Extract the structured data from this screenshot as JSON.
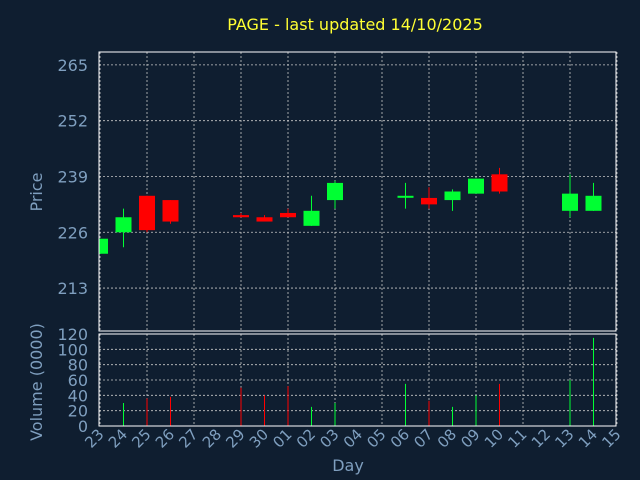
{
  "chart_data": {
    "type": "candlestick",
    "title": "PAGE - last updated 14/10/2025",
    "xlabel": "Day",
    "colors": {
      "background": "#0f1e30",
      "up": "#00ff33",
      "down": "#ff0000",
      "title": "#ffff33",
      "axis_text": "#7f9fbf",
      "grid": "#c8c8c8"
    },
    "price_panel": {
      "ylabel": "Price",
      "ylim": [
        203,
        268
      ],
      "yticks": [
        213,
        226,
        239,
        252,
        265
      ],
      "grid": true
    },
    "volume_panel": {
      "ylabel": "Volume (0000)",
      "ylim": [
        0,
        120
      ],
      "yticks": [
        0,
        20,
        40,
        60,
        80,
        100,
        120
      ],
      "grid": true
    },
    "x_ticks": [
      "23",
      "24",
      "25",
      "26",
      "27",
      "28",
      "29",
      "30",
      "01",
      "02",
      "03",
      "04",
      "05",
      "06",
      "07",
      "08",
      "09",
      "10",
      "11",
      "12",
      "13",
      "14",
      "15"
    ],
    "candles": [
      {
        "day": "23",
        "open": 221.0,
        "high": 224.5,
        "low": 221.0,
        "close": 224.5,
        "volume": 0
      },
      {
        "day": "24",
        "open": 226.0,
        "high": 231.5,
        "low": 222.5,
        "close": 229.5,
        "volume": 30
      },
      {
        "day": "25",
        "open": 234.5,
        "high": 234.5,
        "low": 226.0,
        "close": 226.5,
        "volume": 36
      },
      {
        "day": "26",
        "open": 233.5,
        "high": 233.5,
        "low": 228.0,
        "close": 228.5,
        "volume": 38
      },
      {
        "day": "29",
        "open": 230.0,
        "high": 230.5,
        "low": 229.5,
        "close": 229.5,
        "volume": 50
      },
      {
        "day": "30",
        "open": 229.5,
        "high": 230.0,
        "low": 228.5,
        "close": 228.5,
        "volume": 40
      },
      {
        "day": "01",
        "open": 230.5,
        "high": 231.5,
        "low": 229.5,
        "close": 229.5,
        "volume": 52
      },
      {
        "day": "02",
        "open": 227.5,
        "high": 234.5,
        "low": 227.5,
        "close": 231.0,
        "volume": 25
      },
      {
        "day": "03",
        "open": 233.5,
        "high": 238.0,
        "low": 231.5,
        "close": 237.5,
        "volume": 30
      },
      {
        "day": "06",
        "open": 234.5,
        "high": 237.5,
        "low": 231.5,
        "close": 234.5,
        "volume": 55
      },
      {
        "day": "07",
        "open": 234.0,
        "high": 236.5,
        "low": 231.5,
        "close": 232.5,
        "volume": 33
      },
      {
        "day": "08",
        "open": 233.5,
        "high": 236.0,
        "low": 231.0,
        "close": 235.5,
        "volume": 25
      },
      {
        "day": "09",
        "open": 235.0,
        "high": 238.5,
        "low": 235.0,
        "close": 238.5,
        "volume": 40
      },
      {
        "day": "10",
        "open": 239.5,
        "high": 241.0,
        "low": 235.0,
        "close": 235.5,
        "volume": 55
      },
      {
        "day": "13",
        "open": 231.0,
        "high": 239.5,
        "low": 229.5,
        "close": 235.0,
        "volume": 60
      },
      {
        "day": "14",
        "open": 231.0,
        "high": 237.5,
        "low": 231.0,
        "close": 234.5,
        "volume": 115
      }
    ]
  }
}
